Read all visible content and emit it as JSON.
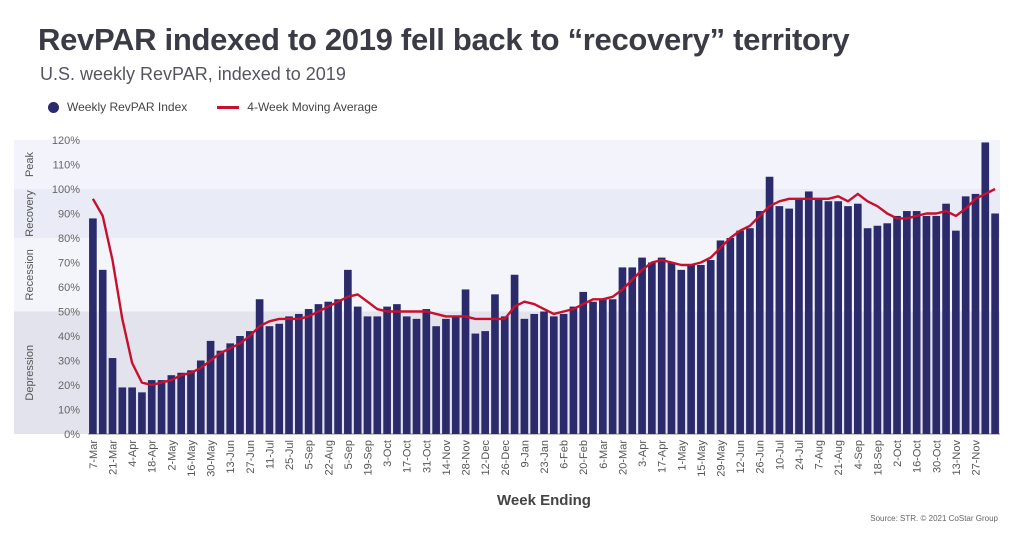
{
  "title": "RevPAR indexed to 2019 fell back to “recovery” territory",
  "subtitle": "U.S. weekly RevPAR, indexed to 2019",
  "legend": {
    "bars": "Weekly RevPAR Index",
    "line": "4-Week Moving Average"
  },
  "source": "Source: STR. © 2021 CoStar Group",
  "colors": {
    "bar": "#2b2a6a",
    "line": "#c8102e",
    "band_peak": "#f3f4fb",
    "band_recovery": "#e9ebf6",
    "band_recession": "#f4f5fa",
    "band_depression": "#e2e3ec"
  },
  "chart_data": {
    "type": "bar",
    "xlabel": "Week Ending",
    "ylabel": "",
    "ylim": [
      0,
      120
    ],
    "yticks": [
      "0%",
      "10%",
      "20%",
      "30%",
      "40%",
      "50%",
      "60%",
      "70%",
      "80%",
      "90%",
      "100%",
      "110%",
      "120%"
    ],
    "bands": [
      {
        "label": "Depression",
        "from": 0,
        "to": 50
      },
      {
        "label": "Recession",
        "from": 50,
        "to": 80
      },
      {
        "label": "Recovery",
        "from": 80,
        "to": 100
      },
      {
        "label": "Peak",
        "from": 100,
        "to": 120
      }
    ],
    "x_labels": [
      "7-Mar",
      "21-Mar",
      "4-Apr",
      "18-Apr",
      "2-May",
      "16-May",
      "30-May",
      "13-Jun",
      "27-Jun",
      "11-Jul",
      "25-Jul",
      "5-Sep",
      "22-Aug",
      "5-Sep",
      "19-Sep",
      "3-Oct",
      "17-Oct",
      "31-Oct",
      "14-Nov",
      "28-Nov",
      "12-Dec",
      "26-Dec",
      "9-Jan",
      "23-Jan",
      "6-Feb",
      "20-Feb",
      "6-Mar",
      "20-Mar",
      "3-Apr",
      "17-Apr",
      "1-May",
      "15-May",
      "29-May",
      "12-Jun",
      "26-Jun",
      "10-Jul",
      "24-Jul",
      "7-Aug",
      "21-Aug",
      "4-Sep",
      "18-Sep",
      "2-Oct",
      "16-Oct",
      "30-Oct",
      "13-Nov",
      "27-Nov"
    ],
    "series": [
      {
        "name": "Weekly RevPAR Index",
        "values": [
          88,
          67,
          31,
          19,
          19,
          17,
          22,
          22,
          24,
          25,
          26,
          30,
          38,
          34,
          37,
          40,
          42,
          55,
          44,
          45,
          48,
          49,
          51,
          53,
          54,
          55,
          67,
          52,
          48,
          48,
          52,
          53,
          48,
          47,
          51,
          44,
          47,
          48,
          59,
          41,
          42,
          57,
          48,
          65,
          47,
          49,
          50,
          48,
          49,
          52,
          58,
          54,
          55,
          55,
          68,
          68,
          72,
          70,
          72,
          70,
          67,
          69,
          69,
          71,
          79,
          80,
          83,
          84,
          91,
          105,
          93,
          92,
          96,
          99,
          96,
          95,
          95,
          93,
          94,
          84,
          85,
          86,
          89,
          91,
          91,
          89,
          89,
          94,
          83,
          97,
          98,
          119,
          90
        ]
      },
      {
        "name": "4-Week Moving Average",
        "values": [
          96,
          89,
          71,
          47,
          29,
          21,
          20,
          21,
          22,
          24,
          25,
          27,
          30,
          33,
          35,
          37,
          40,
          44,
          46,
          47,
          47,
          47,
          48,
          50,
          52,
          54,
          56,
          57,
          54,
          51,
          50,
          50,
          50,
          50,
          50,
          49,
          48,
          48,
          48,
          47,
          47,
          47,
          47,
          52,
          54,
          53,
          51,
          49,
          50,
          51,
          53,
          55,
          55,
          56,
          59,
          63,
          67,
          70,
          71,
          70,
          69,
          69,
          70,
          72,
          76,
          80,
          83,
          85,
          89,
          93,
          95,
          96,
          96,
          96,
          96,
          96,
          97,
          95,
          98,
          95,
          93,
          90,
          88,
          88,
          89,
          90,
          90,
          91,
          89,
          92,
          96,
          98,
          100
        ]
      }
    ]
  }
}
